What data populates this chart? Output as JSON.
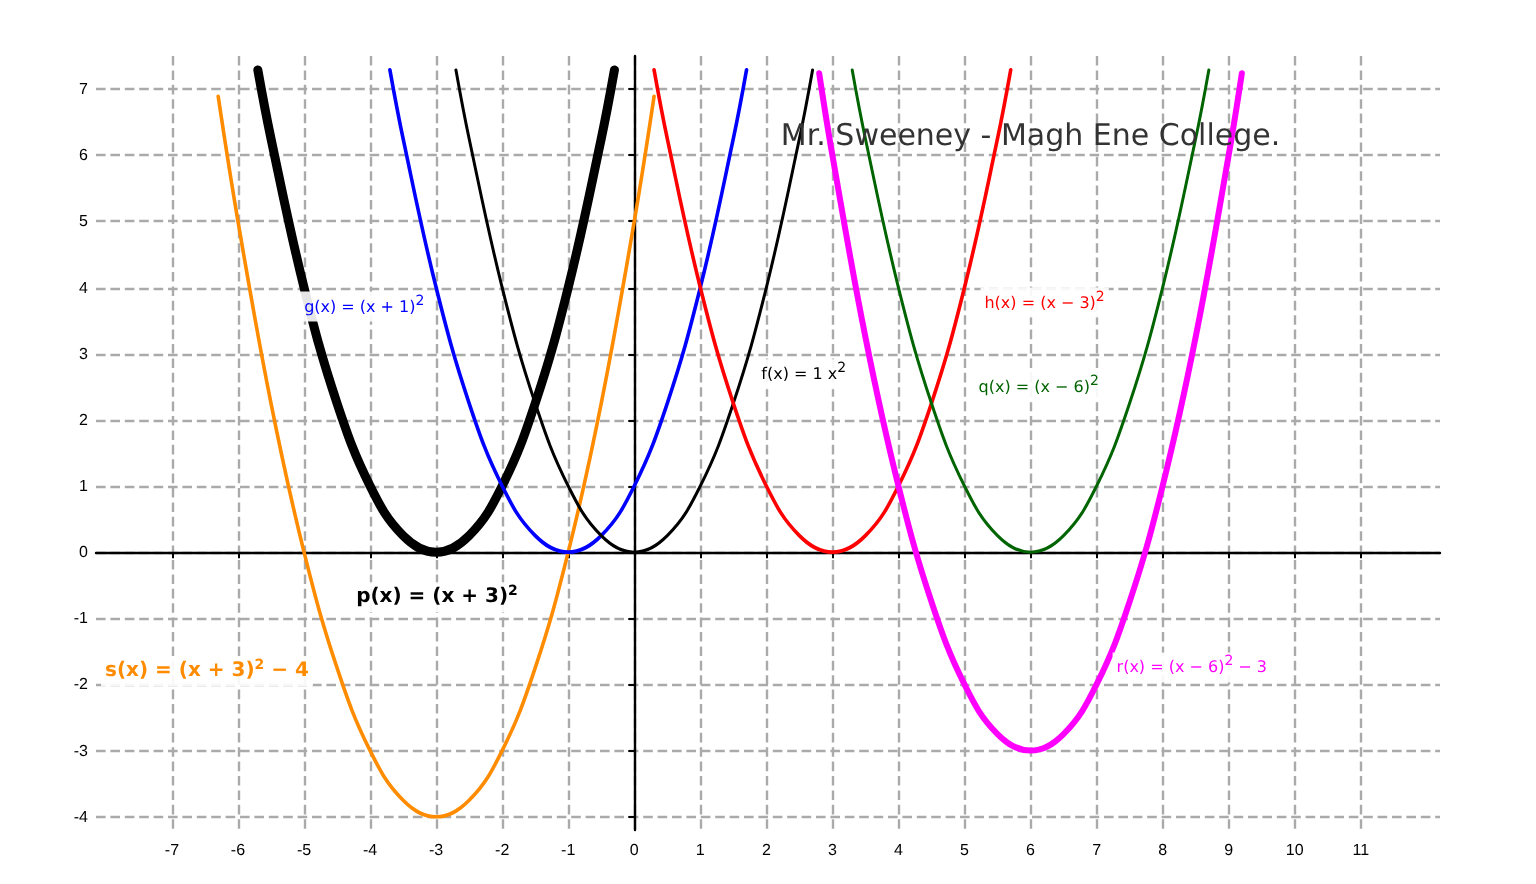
{
  "chart_data": {
    "type": "line",
    "xlim": [
      -8.15,
      12.2
    ],
    "ylim": [
      -4.2,
      7.5
    ],
    "xticks": [
      -7,
      -6,
      -5,
      -4,
      -3,
      -2,
      -1,
      0,
      1,
      2,
      3,
      4,
      5,
      6,
      7,
      8,
      9,
      10,
      11
    ],
    "yticks": [
      -4,
      -3,
      -2,
      -1,
      0,
      1,
      2,
      3,
      4,
      5,
      6,
      7
    ],
    "grid": true,
    "legend": false,
    "marker": "none",
    "line_style": "solid",
    "annotations": [
      "Mr. Sweeney - Magh Ene College."
    ],
    "series": [
      {
        "name": "p(x) = (x + 3)$^{2}$",
        "color": "#000000",
        "x": [
          -5.7,
          -5.5,
          -5,
          -4.5,
          -4,
          -3.5,
          -3,
          -2.5,
          -2,
          -1.5,
          -1,
          -0.5,
          -0.3
        ],
        "values": [
          7.29,
          6.25,
          4,
          2.25,
          1,
          0.25,
          0,
          0.25,
          1,
          2.25,
          4,
          6.25,
          7.29
        ]
      },
      {
        "name": "s(x) = (x + 3)$^{2}$ − 4",
        "color": "#ff8c00",
        "x": [
          -6.3,
          -6,
          -5.5,
          -5,
          -4.5,
          -4,
          -3.5,
          -3,
          -2.5,
          -2,
          -1.5,
          -1,
          -0.5,
          0,
          0.3
        ],
        "values": [
          6.89,
          5,
          2.25,
          0,
          -1.75,
          -3,
          -3.75,
          -4,
          -3.75,
          -3,
          -1.75,
          0,
          2.25,
          5,
          6.89
        ]
      },
      {
        "name": "g(x) = (x + 1)$^{2}$",
        "color": "#0000ff",
        "x": [
          -3.7,
          -3.5,
          -3,
          -2.5,
          -2,
          -1.5,
          -1,
          -0.5,
          0,
          0.5,
          1,
          1.5,
          1.7
        ],
        "values": [
          7.29,
          6.25,
          4,
          2.25,
          1,
          0.25,
          0,
          0.25,
          1,
          2.25,
          4,
          6.25,
          7.29
        ]
      },
      {
        "name": "f(x) = 1 x$^{2}$",
        "color": "#000000",
        "x": [
          -2.7,
          -2.5,
          -2,
          -1.5,
          -1,
          -0.5,
          0,
          0.5,
          1,
          1.5,
          2,
          2.5,
          2.7
        ],
        "values": [
          7.29,
          6.25,
          4,
          2.25,
          1,
          0.25,
          0,
          0.25,
          1,
          2.25,
          4,
          6.25,
          7.29
        ]
      },
      {
        "name": "h(x) = (x − 3)$^{2}$",
        "color": "#ff0000",
        "x": [
          0.3,
          0.5,
          1,
          1.5,
          2,
          2.5,
          3,
          3.5,
          4,
          4.5,
          5,
          5.5,
          5.7
        ],
        "values": [
          7.29,
          6.25,
          4,
          2.25,
          1,
          0.25,
          0,
          0.25,
          1,
          2.25,
          4,
          6.25,
          7.29
        ]
      },
      {
        "name": "q(x) = (x − 6)$^{2}$",
        "color": "#006400",
        "x": [
          3.3,
          3.5,
          4,
          4.5,
          5,
          5.5,
          6,
          6.5,
          7,
          7.5,
          8,
          8.5,
          8.7
        ],
        "values": [
          7.29,
          6.25,
          4,
          2.25,
          1,
          0.25,
          0,
          0.25,
          1,
          2.25,
          4,
          6.25,
          7.29
        ]
      },
      {
        "name": "r(x) = (x − 6)$^{2}$ − 3",
        "color": "#ff00ff",
        "x": [
          2.8,
          3,
          3.5,
          4,
          4.5,
          5,
          5.5,
          6,
          6.5,
          7,
          7.5,
          8,
          8.5,
          9,
          9.2
        ],
        "values": [
          7.24,
          6,
          3.25,
          1,
          -0.75,
          -2,
          -2.75,
          -3,
          -2.75,
          -2,
          -0.75,
          1,
          3.25,
          6,
          7.24
        ]
      }
    ]
  }
}
